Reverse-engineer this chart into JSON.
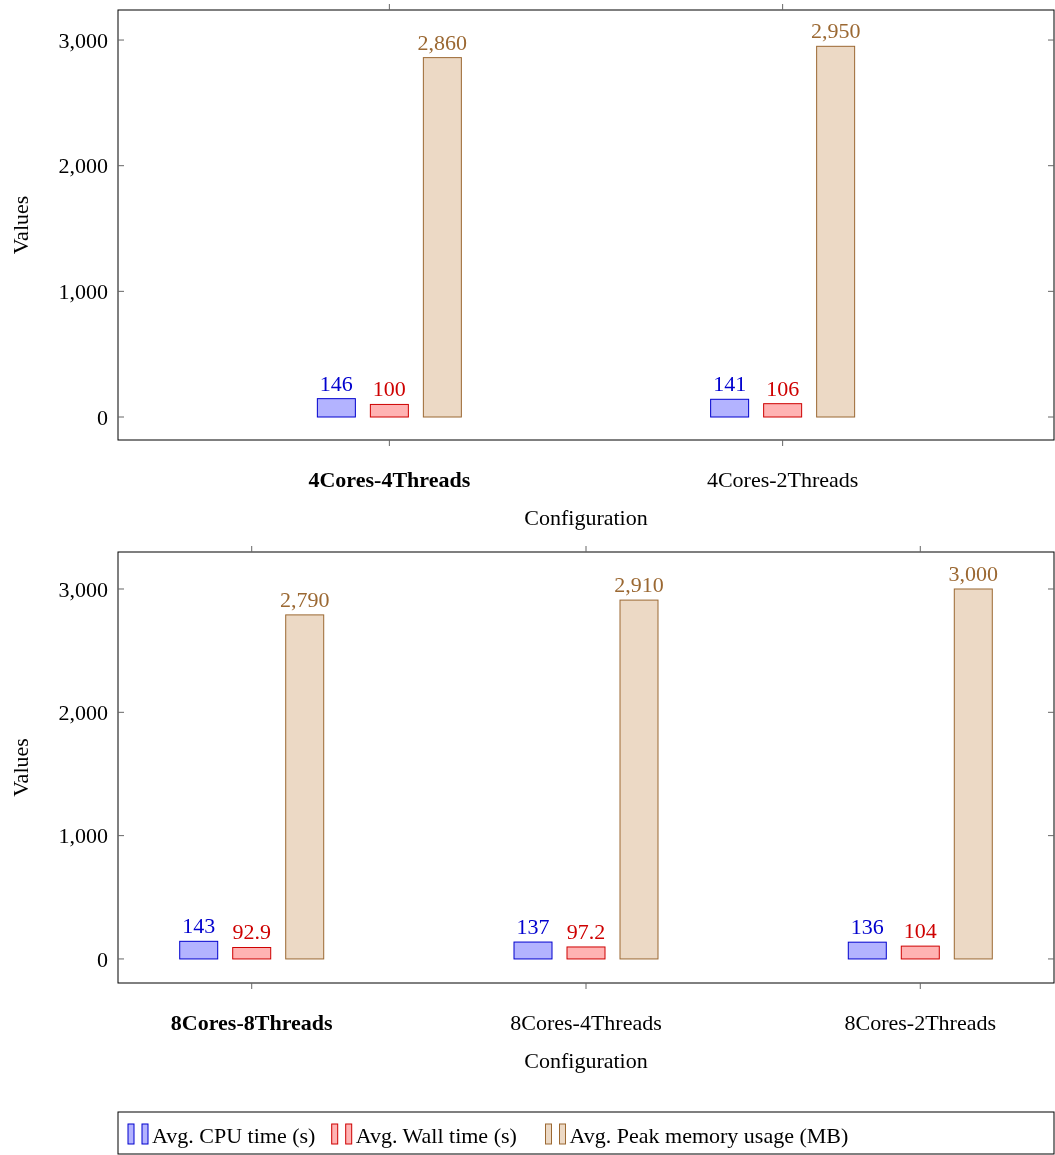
{
  "chart_data": [
    {
      "type": "bar",
      "xlabel": "Configuration",
      "ylabel": "Values",
      "categories": [
        "4Cores-4Threads",
        "4Cores-2Threads"
      ],
      "series": [
        {
          "color": "#b3b3ff",
          "values": [
            146,
            141
          ],
          "value_labels": [
            "146",
            "141"
          ]
        },
        {
          "color": "#ffb3b3",
          "values": [
            100,
            106
          ],
          "value_labels": [
            "100",
            "106"
          ]
        },
        {
          "color": "#ecd9c5",
          "values": [
            2860,
            2950
          ],
          "value_labels": [
            "2,860",
            "2,950"
          ]
        }
      ],
      "ylim": [
        -183,
        3239
      ],
      "yticks": [
        0,
        {
          "value": 1000,
          "label": "1,000"
        },
        {
          "value": 2000,
          "label": "2,000"
        },
        {
          "value": 3000,
          "label": "3,000"
        }
      ],
      "legend": false
    },
    {
      "type": "bar",
      "xlabel": "Configuration",
      "ylabel": "Values",
      "categories": [
        "8Cores-8Threads",
        "8Cores-4Threads",
        "8Cores-2Threads"
      ],
      "series": [
        {
          "name": "Avg. CPU time (s)",
          "color": "#b3b3ff",
          "values": [
            143,
            137,
            136
          ],
          "value_labels": [
            "143",
            "137",
            "136"
          ]
        },
        {
          "name": "Avg. Wall time (s)",
          "color": "#ffb3b3",
          "values": [
            92.9,
            97.2,
            104
          ],
          "value_labels": [
            "92.9",
            "97.2",
            "104"
          ]
        },
        {
          "name": "Avg. Peak memory usage (MB)",
          "color": "#ecd9c5",
          "values": [
            2790,
            2910,
            3000
          ],
          "value_labels": [
            "2,790",
            "2,910",
            "3,000"
          ]
        }
      ],
      "ylim": [
        -195,
        3300
      ],
      "yticks": [
        0,
        {
          "value": 1000,
          "label": "1,000"
        },
        {
          "value": 2000,
          "label": "2,000"
        },
        {
          "value": 3000,
          "label": "3,000"
        }
      ],
      "legend": "bottom"
    }
  ]
}
